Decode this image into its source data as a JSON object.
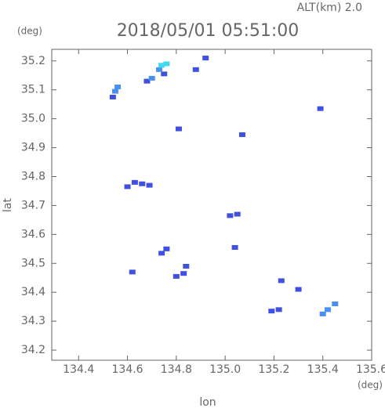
{
  "chart_data": {
    "type": "scatter",
    "title": "2018/05/01 05:51:00",
    "subtitle": "ALT(km) 2.0",
    "x_unit": "(deg)",
    "y_unit": "(deg)",
    "x_label": "lon",
    "y_label": "lat",
    "xlim": [
      134.29,
      135.6
    ],
    "ylim": [
      34.165,
      35.24
    ],
    "xticks": [
      134.4,
      134.6,
      134.8,
      {
        "value": 135,
        "label": "135.0"
      },
      135.2,
      135.4,
      135.6
    ],
    "yticks": [
      34.2,
      34.3,
      34.4,
      34.5,
      34.6,
      34.7,
      34.8,
      34.9,
      {
        "value": 35,
        "label": "35.0"
      },
      35.1,
      35.2
    ],
    "series": [
      {
        "color": "#4050e0",
        "x": [
          134.54,
          134.92,
          134.88,
          135.39,
          134.81,
          135.07,
          134.6,
          134.63,
          134.66,
          134.69,
          135.02,
          135.05,
          134.74,
          134.76,
          134.62,
          135.04,
          134.8,
          134.83,
          134.84,
          135.19,
          135.22,
          135.3,
          135.23,
          134.68,
          134.75
        ],
        "y": [
          35.075,
          35.21,
          35.17,
          35.035,
          34.965,
          34.945,
          34.765,
          34.78,
          34.775,
          34.77,
          34.665,
          34.67,
          34.535,
          34.55,
          34.47,
          34.555,
          34.455,
          34.465,
          34.49,
          34.335,
          34.34,
          34.41,
          34.44,
          35.13,
          35.155
        ]
      },
      {
        "color": "#4a90f0",
        "x": [
          134.55,
          134.56,
          134.7,
          134.73,
          135.4,
          135.42,
          135.45
        ],
        "y": [
          35.095,
          35.11,
          35.14,
          35.17,
          34.325,
          34.34,
          34.36
        ]
      },
      {
        "color": "#40d8f0",
        "x": [
          134.74,
          134.76
        ],
        "y": [
          35.185,
          35.19
        ]
      }
    ]
  }
}
